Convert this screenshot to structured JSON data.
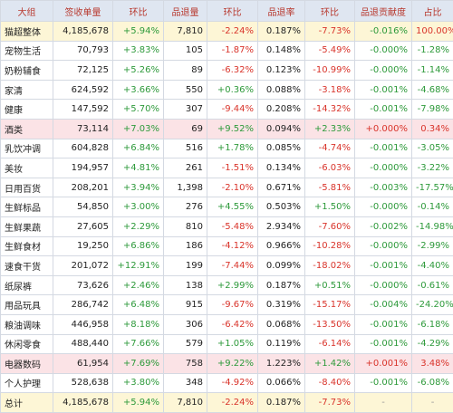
{
  "table": {
    "header": [
      "大组",
      "签收单量",
      "环比",
      "品退量",
      "环比",
      "品退率",
      "环比",
      "品退贡献度",
      "占比"
    ],
    "rows": [
      [
        "猫超整体",
        "4,185,678",
        "+5.94%",
        "7,810",
        "-2.24%",
        "0.187%",
        "-7.73%",
        "-0.016%",
        "100.00%"
      ],
      [
        "宠物生活",
        "70,793",
        "+3.83%",
        "105",
        "-1.87%",
        "0.148%",
        "-5.49%",
        "-0.000%",
        "-1.28%"
      ],
      [
        "奶粉辅食",
        "72,125",
        "+5.26%",
        "89",
        "-6.32%",
        "0.123%",
        "-10.99%",
        "-0.000%",
        "-1.14%"
      ],
      [
        "家清",
        "624,592",
        "+3.66%",
        "550",
        "+0.36%",
        "0.088%",
        "-3.18%",
        "-0.001%",
        "-4.68%"
      ],
      [
        "健康",
        "147,592",
        "+5.70%",
        "307",
        "-9.44%",
        "0.208%",
        "-14.32%",
        "-0.001%",
        "-7.98%"
      ],
      [
        "酒类",
        "73,114",
        "+7.03%",
        "69",
        "+9.52%",
        "0.094%",
        "+2.33%",
        "+0.000%",
        "0.34%"
      ],
      [
        "乳饮冲调",
        "604,828",
        "+6.84%",
        "516",
        "+1.78%",
        "0.085%",
        "-4.74%",
        "-0.001%",
        "-3.05%"
      ],
      [
        "美妆",
        "194,957",
        "+4.81%",
        "261",
        "-1.51%",
        "0.134%",
        "-6.03%",
        "-0.000%",
        "-3.22%"
      ],
      [
        "日用百货",
        "208,201",
        "+3.94%",
        "1,398",
        "-2.10%",
        "0.671%",
        "-5.81%",
        "-0.003%",
        "-17.57%"
      ],
      [
        "生鲜标品",
        "54,850",
        "+3.00%",
        "276",
        "+4.55%",
        "0.503%",
        "+1.50%",
        "-0.000%",
        "-0.14%"
      ],
      [
        "生鲜果蔬",
        "27,605",
        "+2.29%",
        "810",
        "-5.48%",
        "2.934%",
        "-7.60%",
        "-0.002%",
        "-14.98%"
      ],
      [
        "生鲜食材",
        "19,250",
        "+6.86%",
        "186",
        "-4.12%",
        "0.966%",
        "-10.28%",
        "-0.000%",
        "-2.99%"
      ],
      [
        "速食干货",
        "201,072",
        "+12.91%",
        "199",
        "-7.44%",
        "0.099%",
        "-18.02%",
        "-0.001%",
        "-4.40%"
      ],
      [
        "纸尿裤",
        "73,626",
        "+2.46%",
        "138",
        "+2.99%",
        "0.187%",
        "+0.51%",
        "-0.000%",
        "-0.61%"
      ],
      [
        "用品玩具",
        "286,742",
        "+6.48%",
        "915",
        "-9.67%",
        "0.319%",
        "-15.17%",
        "-0.004%",
        "-24.20%"
      ],
      [
        "粮油调味",
        "446,958",
        "+8.18%",
        "306",
        "-6.42%",
        "0.068%",
        "-13.50%",
        "-0.001%",
        "-6.18%"
      ],
      [
        "休闲零食",
        "488,440",
        "+7.66%",
        "579",
        "+1.05%",
        "0.119%",
        "-6.14%",
        "-0.001%",
        "-4.29%"
      ],
      [
        "电器数码",
        "61,954",
        "+7.69%",
        "758",
        "+9.22%",
        "1.223%",
        "+1.42%",
        "+0.001%",
        "3.48%"
      ],
      [
        "个人护理",
        "528,638",
        "+3.80%",
        "348",
        "-4.92%",
        "0.066%",
        "-8.40%",
        "-0.001%",
        "-6.08%"
      ],
      [
        "总计",
        "4,185,678",
        "+5.94%",
        "7,810",
        "-2.24%",
        "0.187%",
        "-7.73%",
        "-",
        "-"
      ]
    ]
  }
}
